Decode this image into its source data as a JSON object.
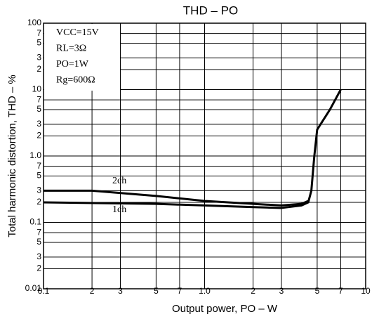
{
  "chart_data": {
    "type": "line",
    "title": "THD – PO",
    "x_label": "Output power,  PO – W",
    "y_label": "Total harmonic distortion,  THD – %",
    "xscale": "log",
    "yscale": "log",
    "grid": true,
    "xlim": [
      0.1,
      10
    ],
    "xticks": [
      0.1,
      {
        "value": 0.2,
        "label": "2"
      },
      {
        "value": 0.3,
        "label": "3"
      },
      {
        "value": 0.5,
        "label": "5"
      },
      {
        "value": 0.7,
        "label": "7"
      },
      {
        "value": 1,
        "label": "1.0"
      },
      2,
      3,
      5,
      7,
      10
    ],
    "ylim": [
      0.01,
      100
    ],
    "yticks": [
      0.01,
      {
        "value": 0.02,
        "label": "2"
      },
      {
        "value": 0.03,
        "label": "3"
      },
      {
        "value": 0.05,
        "label": "5"
      },
      {
        "value": 0.07,
        "label": "7"
      },
      0.1,
      {
        "value": 0.2,
        "label": "2"
      },
      {
        "value": 0.3,
        "label": "3"
      },
      {
        "value": 0.5,
        "label": "5"
      },
      {
        "value": 0.7,
        "label": "7"
      },
      {
        "value": 1,
        "label": "1.0"
      },
      2,
      3,
      5,
      7,
      10,
      {
        "value": 20,
        "label": "2"
      },
      {
        "value": 30,
        "label": "3"
      },
      {
        "value": 50,
        "label": "5"
      },
      {
        "value": 70,
        "label": "7"
      },
      100
    ],
    "annotations": [
      "VCC=15V",
      "RL=3Ω",
      "PO=1W",
      "Rg=600Ω"
    ],
    "series": [
      {
        "name": "2ch",
        "color": "#000000",
        "x": [
          0.1,
          0.2,
          0.5,
          1,
          2,
          3,
          4,
          4.4
        ],
        "values": [
          0.3,
          0.3,
          0.25,
          0.21,
          0.19,
          0.18,
          0.19,
          0.21
        ]
      },
      {
        "name": "1ch",
        "color": "#000000",
        "x": [
          0.1,
          0.5,
          1,
          2,
          3,
          4,
          4.4,
          4.6,
          4.8,
          5,
          6,
          7
        ],
        "values": [
          0.2,
          0.19,
          0.18,
          0.17,
          0.165,
          0.18,
          0.2,
          0.3,
          1.0,
          2.5,
          5,
          10
        ]
      }
    ]
  }
}
